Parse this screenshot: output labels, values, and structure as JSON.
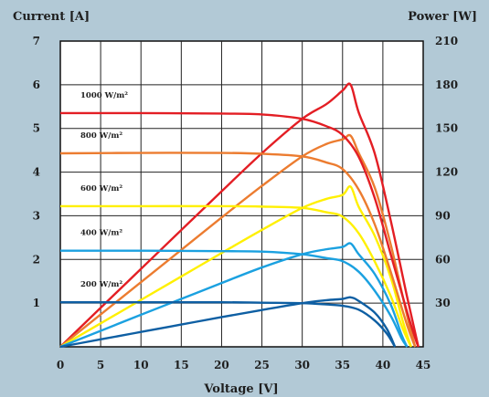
{
  "chart_data": {
    "type": "line",
    "title": "",
    "xlabel": "Voltage [V]",
    "ylabel_left": "Current [A]",
    "ylabel_right": "Power [W]",
    "xlim": [
      0,
      45
    ],
    "ylim_left": [
      0,
      7
    ],
    "ylim_right": [
      0,
      210
    ],
    "x_ticks": [
      0,
      5,
      10,
      15,
      20,
      25,
      30,
      35,
      40,
      45
    ],
    "y_left_ticks": [
      1,
      2,
      3,
      4,
      5,
      6,
      7
    ],
    "y_right_ticks": [
      30,
      60,
      90,
      120,
      150,
      180,
      210
    ],
    "grid": true,
    "irradiance_labels": [
      "1000 W/m²",
      "800 W/m²",
      "600 W/m²",
      "400 W/m²",
      "200 W/m²"
    ],
    "iv_curves": [
      {
        "irradiance": "1000 W/m²",
        "color": "#e31e24",
        "points": [
          [
            0,
            5.35
          ],
          [
            10,
            5.35
          ],
          [
            20,
            5.34
          ],
          [
            25,
            5.32
          ],
          [
            30,
            5.22
          ],
          [
            33,
            5.05
          ],
          [
            35,
            4.85
          ],
          [
            37,
            4.35
          ],
          [
            39,
            3.4
          ],
          [
            41,
            2.1
          ],
          [
            43,
            0.8
          ],
          [
            44,
            0.2
          ],
          [
            44.4,
            0
          ]
        ]
      },
      {
        "irradiance": "800 W/m²",
        "color": "#ec7c30",
        "points": [
          [
            0,
            4.43
          ],
          [
            10,
            4.44
          ],
          [
            20,
            4.44
          ],
          [
            25,
            4.42
          ],
          [
            30,
            4.36
          ],
          [
            33,
            4.22
          ],
          [
            35,
            4.07
          ],
          [
            37,
            3.6
          ],
          [
            39,
            2.8
          ],
          [
            41,
            1.7
          ],
          [
            43,
            0.5
          ],
          [
            44,
            0
          ]
        ]
      },
      {
        "irradiance": "600 W/m²",
        "color": "#fff000",
        "points": [
          [
            0,
            3.22
          ],
          [
            10,
            3.22
          ],
          [
            20,
            3.22
          ],
          [
            25,
            3.21
          ],
          [
            30,
            3.18
          ],
          [
            33,
            3.08
          ],
          [
            35,
            2.98
          ],
          [
            37,
            2.6
          ],
          [
            39,
            1.95
          ],
          [
            41,
            1.15
          ],
          [
            42.5,
            0.4
          ],
          [
            43.5,
            0
          ]
        ]
      },
      {
        "irradiance": "400 W/m²",
        "color": "#1ba1e0",
        "points": [
          [
            0,
            2.2
          ],
          [
            10,
            2.2
          ],
          [
            20,
            2.19
          ],
          [
            25,
            2.18
          ],
          [
            30,
            2.12
          ],
          [
            33,
            2.03
          ],
          [
            35,
            1.96
          ],
          [
            37,
            1.72
          ],
          [
            39,
            1.28
          ],
          [
            41,
            0.7
          ],
          [
            42.3,
            0.2
          ],
          [
            43,
            0
          ]
        ]
      },
      {
        "irradiance": "200 W/m²",
        "color": "#0e5fa3",
        "points": [
          [
            0,
            1.02
          ],
          [
            10,
            1.02
          ],
          [
            20,
            1.02
          ],
          [
            25,
            1.01
          ],
          [
            30,
            1.0
          ],
          [
            33,
            0.97
          ],
          [
            35,
            0.94
          ],
          [
            37,
            0.85
          ],
          [
            39,
            0.6
          ],
          [
            40.5,
            0.3
          ],
          [
            41.5,
            0
          ]
        ]
      }
    ],
    "pv_curves": [
      {
        "irradiance": "1000 W/m²",
        "color": "#e31e24",
        "points": [
          [
            0,
            0
          ],
          [
            5,
            26.8
          ],
          [
            10,
            53.5
          ],
          [
            15,
            80.2
          ],
          [
            20,
            106.8
          ],
          [
            25,
            133
          ],
          [
            30,
            156.6
          ],
          [
            33,
            166.7
          ],
          [
            35,
            176
          ],
          [
            36,
            180
          ],
          [
            37,
            161
          ],
          [
            39,
            132.6
          ],
          [
            41,
            86.1
          ],
          [
            43,
            34.4
          ],
          [
            44.4,
            0
          ]
        ]
      },
      {
        "irradiance": "800 W/m²",
        "color": "#ec7c30",
        "points": [
          [
            0,
            0
          ],
          [
            5,
            22.2
          ],
          [
            10,
            44.4
          ],
          [
            15,
            66.6
          ],
          [
            20,
            88.8
          ],
          [
            25,
            110.5
          ],
          [
            30,
            130.8
          ],
          [
            33,
            139.3
          ],
          [
            35,
            142.5
          ],
          [
            36,
            145
          ],
          [
            37,
            133.2
          ],
          [
            39,
            109.2
          ],
          [
            41,
            69.7
          ],
          [
            43,
            21.5
          ],
          [
            44,
            0
          ]
        ]
      },
      {
        "irradiance": "600 W/m²",
        "color": "#fff000",
        "points": [
          [
            0,
            0
          ],
          [
            5,
            16.1
          ],
          [
            10,
            32.2
          ],
          [
            15,
            48.3
          ],
          [
            20,
            64.4
          ],
          [
            25,
            80.3
          ],
          [
            30,
            95.4
          ],
          [
            33,
            101.6
          ],
          [
            35,
            104.3
          ],
          [
            36,
            110
          ],
          [
            37,
            96.2
          ],
          [
            39,
            76.1
          ],
          [
            41,
            47.2
          ],
          [
            42.5,
            17
          ],
          [
            43.5,
            0
          ]
        ]
      },
      {
        "irradiance": "400 W/m²",
        "color": "#1ba1e0",
        "points": [
          [
            0,
            0
          ],
          [
            5,
            11
          ],
          [
            10,
            22
          ],
          [
            15,
            32.9
          ],
          [
            20,
            43.8
          ],
          [
            25,
            54.5
          ],
          [
            30,
            63.6
          ],
          [
            33,
            67
          ],
          [
            35,
            68.6
          ],
          [
            36,
            71
          ],
          [
            37,
            63.6
          ],
          [
            39,
            49.9
          ],
          [
            41,
            28.7
          ],
          [
            42.3,
            8.5
          ],
          [
            43,
            0
          ]
        ]
      },
      {
        "irradiance": "200 W/m²",
        "color": "#0e5fa3",
        "points": [
          [
            0,
            0
          ],
          [
            5,
            5.1
          ],
          [
            10,
            10.2
          ],
          [
            15,
            15.3
          ],
          [
            20,
            20.4
          ],
          [
            25,
            25.3
          ],
          [
            30,
            30
          ],
          [
            33,
            32
          ],
          [
            35,
            32.9
          ],
          [
            36,
            34
          ],
          [
            37,
            31.5
          ],
          [
            39,
            23.4
          ],
          [
            40.5,
            12.2
          ],
          [
            41.5,
            0
          ]
        ]
      }
    ]
  }
}
